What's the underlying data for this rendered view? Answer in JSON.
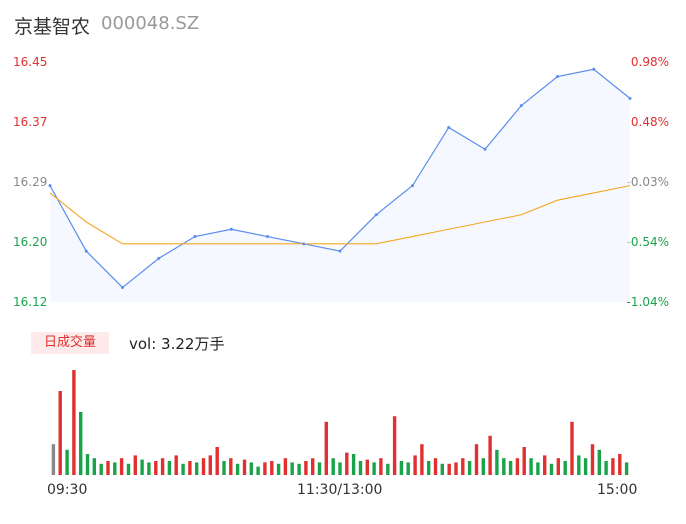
{
  "header": {
    "name": "京基智农",
    "code": "000048.SZ"
  },
  "price_axis": {
    "left_labels": [
      "16.45",
      "16.37",
      "16.29",
      "16.20",
      "16.12"
    ],
    "right_labels": [
      "0.98%",
      "0.48%",
      "-0.03%",
      "-0.54%",
      "-1.04%"
    ]
  },
  "volume": {
    "tag": "日成交量",
    "text": "vol: 3.22万手"
  },
  "time_axis": {
    "labels": [
      "09:30",
      "11:30/13:00",
      "15:00"
    ]
  },
  "colors": {
    "price_line": "#5b8def",
    "avg_line": "#f5a623",
    "up": "#e03030",
    "down": "#1aa34a",
    "flat": "#888888"
  },
  "chart_data": {
    "type": "line",
    "y_range": [
      16.12,
      16.45
    ],
    "prev_close": 16.29,
    "x": [
      "09:30",
      "09:45",
      "10:00",
      "10:15",
      "10:30",
      "10:45",
      "11:00",
      "11:15",
      "11:30/13:00",
      "13:15",
      "13:30",
      "13:45",
      "14:00",
      "14:15",
      "14:30",
      "14:45",
      "15:00"
    ],
    "series": [
      {
        "values": [
          16.28,
          16.19,
          16.14,
          16.18,
          16.21,
          16.22,
          16.21,
          16.2,
          16.19,
          16.24,
          16.28,
          16.36,
          16.33,
          16.39,
          16.43,
          16.44,
          16.4
        ]
      },
      {
        "values": [
          16.27,
          16.23,
          16.2,
          16.2,
          16.2,
          16.2,
          16.2,
          16.2,
          16.2,
          16.2,
          16.21,
          16.22,
          16.23,
          16.24,
          16.26,
          16.27,
          16.28
        ]
      }
    ],
    "volume_values": [
      22,
      60,
      18,
      75,
      45,
      15,
      12,
      8,
      10,
      9,
      12,
      8,
      14,
      11,
      9,
      10,
      12,
      10,
      14,
      8,
      10,
      9,
      12,
      14,
      20,
      10,
      12,
      8,
      11,
      9,
      6,
      9,
      10,
      8,
      12,
      9,
      8,
      10,
      12,
      9,
      38,
      12,
      9,
      16,
      15,
      10,
      11,
      9,
      12,
      8,
      42,
      10,
      9,
      14,
      22,
      10,
      12,
      8,
      8,
      9,
      12,
      10,
      22,
      12,
      28,
      18,
      12,
      10,
      12,
      20,
      12,
      9,
      14,
      8,
      12,
      10,
      38,
      14,
      12,
      22,
      18,
      10,
      12,
      15,
      9
    ]
  }
}
